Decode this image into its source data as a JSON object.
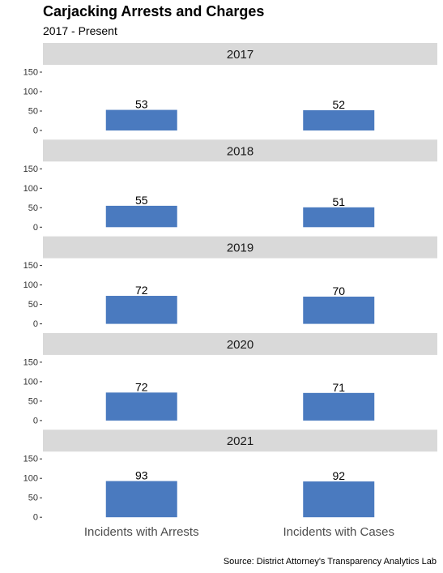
{
  "title": "Carjacking Arrests and Charges",
  "subtitle": "2017 - Present",
  "caption": "Source: District Attorney's Transparency Analytics Lab",
  "chart_data": {
    "type": "bar",
    "facet_by": "year",
    "categories": [
      "Incidents with Arrests",
      "Incidents with Cases"
    ],
    "y_ticks": [
      0,
      50,
      100,
      150
    ],
    "ylim": [
      0,
      150
    ],
    "bar_color": "#4a7abf",
    "strip_color": "#d9d9d9",
    "panels": [
      {
        "label": "2017",
        "values": [
          53,
          52
        ]
      },
      {
        "label": "2018",
        "values": [
          55,
          51
        ]
      },
      {
        "label": "2019",
        "values": [
          72,
          70
        ]
      },
      {
        "label": "2020",
        "values": [
          72,
          71
        ]
      },
      {
        "label": "2021",
        "values": [
          93,
          92
        ]
      }
    ]
  }
}
